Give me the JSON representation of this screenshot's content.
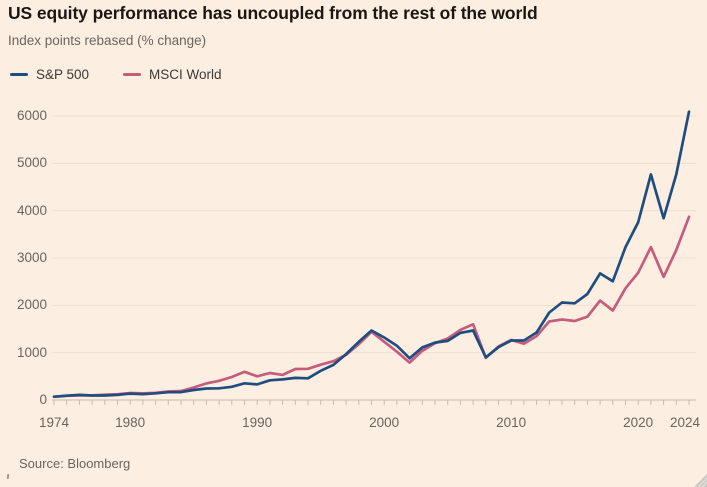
{
  "theme": {
    "background": "#fcefe2",
    "title_color": "#1b1713",
    "muted_text_color": "#6b645c",
    "legend_text_color": "#3c3833",
    "gridline_color": "#ece0d2",
    "axis_color": "#c8bbac",
    "resize_handle_color": "#cbc7c2"
  },
  "header": {
    "title": "US equity performance has uncoupled from the rest of the world",
    "subtitle": "Index points rebased (% change)"
  },
  "legend": {
    "items": [
      {
        "key": "sp500",
        "label": "S&P 500",
        "color": "#204d80"
      },
      {
        "key": "msci-world",
        "label": "MSCI World",
        "color": "#c65c7b"
      }
    ]
  },
  "footer": {
    "source": "Source: Bloomberg"
  },
  "chart_data": {
    "type": "line",
    "title": "US equity performance has uncoupled from the rest of the world",
    "subtitle": "Index points rebased (% change)",
    "xlabel": "",
    "ylabel": "",
    "xlim": [
      1974,
      2024
    ],
    "ylim": [
      0,
      6400
    ],
    "grid": "horizontal",
    "legend_position": "top-left",
    "y_ticks": [
      0,
      1000,
      2000,
      3000,
      4000,
      5000,
      6000
    ],
    "x_tick_labels": [
      1974,
      1980,
      1990,
      2000,
      2010,
      2020,
      2024
    ],
    "x": [
      1974,
      1975,
      1976,
      1977,
      1978,
      1979,
      1980,
      1981,
      1982,
      1983,
      1984,
      1985,
      1986,
      1987,
      1988,
      1989,
      1990,
      1991,
      1992,
      1993,
      1994,
      1995,
      1996,
      1997,
      1998,
      1999,
      2000,
      2001,
      2002,
      2003,
      2004,
      2005,
      2006,
      2007,
      2008,
      2009,
      2010,
      2011,
      2012,
      2013,
      2014,
      2015,
      2016,
      2017,
      2018,
      2019,
      2020,
      2021,
      2022,
      2023,
      2024
    ],
    "series": [
      {
        "name": "S&P 500",
        "key": "sp500",
        "color": "#204d80",
        "values": [
          69,
          90,
          107,
          95,
          96,
          108,
          136,
          123,
          141,
          165,
          167,
          211,
          242,
          247,
          278,
          353,
          330,
          417,
          436,
          466,
          459,
          616,
          741,
          970,
          1229,
          1469,
          1320,
          1148,
          880,
          1112,
          1212,
          1248,
          1418,
          1468,
          903,
          1115,
          1258,
          1258,
          1426,
          1848,
          2059,
          2044,
          2239,
          2674,
          2507,
          3231,
          3756,
          4766,
          3840,
          4770,
          6090
        ]
      },
      {
        "name": "MSCI World",
        "key": "msci-world",
        "color": "#c65c7b",
        "values": [
          68,
          88,
          97,
          97,
          112,
          122,
          148,
          140,
          150,
          180,
          190,
          265,
          350,
          405,
          485,
          595,
          500,
          570,
          530,
          655,
          660,
          745,
          820,
          955,
          1180,
          1440,
          1230,
          1020,
          790,
          1040,
          1200,
          1300,
          1480,
          1600,
          890,
          1130,
          1270,
          1190,
          1350,
          1660,
          1700,
          1670,
          1760,
          2100,
          1890,
          2360,
          2690,
          3230,
          2600,
          3170,
          3870
        ]
      }
    ]
  }
}
